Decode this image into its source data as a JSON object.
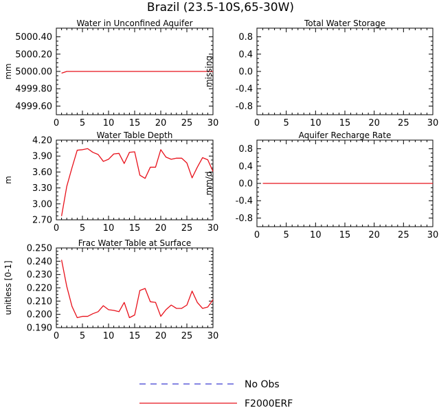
{
  "title": "Brazil (23.5-10S,65-30W)",
  "colors": {
    "model": "#e8101a",
    "obs": "#3a3ad0",
    "axis": "#000000"
  },
  "legend": [
    {
      "label": "No Obs",
      "style": "dashed",
      "color": "#3a3ad0"
    },
    {
      "label": "F2000ERF",
      "style": "solid",
      "color": "#e8101a"
    }
  ],
  "chart_data": [
    {
      "id": "unconfined",
      "type": "line",
      "title": "Water in Unconfined Aquifer",
      "ylabel": "mm",
      "xlim": [
        0,
        30
      ],
      "ylim": [
        4999.5,
        5000.5
      ],
      "xticks": [
        0,
        5,
        10,
        15,
        20,
        25,
        30
      ],
      "yticks": [
        4999.6,
        4999.8,
        5000.0,
        5000.2,
        5000.4
      ],
      "yticklabels": [
        "4999.60",
        "4999.80",
        "5000.00",
        "5000.20",
        "5000.40"
      ],
      "series": [
        {
          "name": "F2000ERF",
          "x": [
            1,
            2,
            30
          ],
          "y": [
            4999.98,
            5000.0,
            5000.0
          ]
        }
      ]
    },
    {
      "id": "storage",
      "type": "line",
      "title": "Total Water Storage",
      "ylabel": "missing",
      "xlim": [
        0,
        30
      ],
      "ylim": [
        -1,
        1
      ],
      "xticks": [
        0,
        5,
        10,
        15,
        20,
        25,
        30
      ],
      "yticks": [
        -0.8,
        -0.4,
        0.0,
        0.4,
        0.8
      ],
      "yticklabels": [
        "-0.8",
        "-0.4",
        "0.0",
        "0.4",
        "0.8"
      ],
      "series": []
    },
    {
      "id": "wtd",
      "type": "line",
      "title": "Water Table Depth",
      "ylabel": "m",
      "xlim": [
        0,
        30
      ],
      "ylim": [
        2.7,
        4.2
      ],
      "xticks": [
        0,
        5,
        10,
        15,
        20,
        25,
        30
      ],
      "yticks": [
        2.7,
        3.0,
        3.3,
        3.6,
        3.9,
        4.2
      ],
      "yticklabels": [
        "2.70",
        "3.00",
        "3.30",
        "3.60",
        "3.90",
        "4.20"
      ],
      "series": [
        {
          "name": "F2000ERF",
          "x": [
            1,
            2,
            3,
            4,
            5,
            6,
            7,
            8,
            9,
            10,
            11,
            12,
            13,
            14,
            15,
            16,
            17,
            18,
            19,
            20,
            21,
            22,
            23,
            24,
            25,
            26,
            27,
            28,
            29,
            30
          ],
          "y": [
            2.77,
            3.33,
            3.68,
            4.01,
            4.02,
            4.04,
            3.97,
            3.93,
            3.8,
            3.84,
            3.94,
            3.95,
            3.76,
            3.97,
            3.98,
            3.54,
            3.48,
            3.69,
            3.69,
            4.02,
            3.88,
            3.84,
            3.86,
            3.86,
            3.77,
            3.49,
            3.69,
            3.87,
            3.83,
            3.61
          ]
        }
      ]
    },
    {
      "id": "recharge",
      "type": "line",
      "title": "Aquifer Recharge Rate",
      "ylabel": "mm/d",
      "xlim": [
        0,
        30
      ],
      "ylim": [
        -1,
        1
      ],
      "xticks": [
        0,
        5,
        10,
        15,
        20,
        25,
        30
      ],
      "yticks": [
        -0.8,
        -0.4,
        0.0,
        0.4,
        0.8
      ],
      "yticklabels": [
        "-0.8",
        "-0.4",
        "0.0",
        "0.4",
        "0.8"
      ],
      "series": [
        {
          "name": "F2000ERF",
          "x": [
            1,
            30
          ],
          "y": [
            0.0,
            0.0
          ]
        }
      ]
    },
    {
      "id": "frac",
      "type": "line",
      "title": "Frac Water Table at Surface",
      "ylabel": "unitless [0-1]",
      "xlim": [
        0,
        30
      ],
      "ylim": [
        0.19,
        0.25
      ],
      "xticks": [
        0,
        5,
        10,
        15,
        20,
        25,
        30
      ],
      "yticks": [
        0.19,
        0.2,
        0.21,
        0.22,
        0.23,
        0.24,
        0.25
      ],
      "yticklabels": [
        "0.190",
        "0.200",
        "0.210",
        "0.220",
        "0.230",
        "0.240",
        "0.250"
      ],
      "series": [
        {
          "name": "F2000ERF",
          "x": [
            1,
            2,
            3,
            4,
            5,
            6,
            7,
            8,
            9,
            10,
            11,
            12,
            13,
            14,
            15,
            16,
            17,
            18,
            19,
            20,
            21,
            22,
            23,
            24,
            25,
            26,
            27,
            28,
            29,
            30
          ],
          "y": [
            0.241,
            0.221,
            0.206,
            0.1975,
            0.1985,
            0.1985,
            0.2005,
            0.202,
            0.2065,
            0.2035,
            0.203,
            0.202,
            0.209,
            0.1975,
            0.1995,
            0.218,
            0.2195,
            0.2095,
            0.209,
            0.1985,
            0.2035,
            0.207,
            0.2045,
            0.2045,
            0.207,
            0.2175,
            0.209,
            0.2045,
            0.2055,
            0.211
          ]
        }
      ]
    }
  ]
}
